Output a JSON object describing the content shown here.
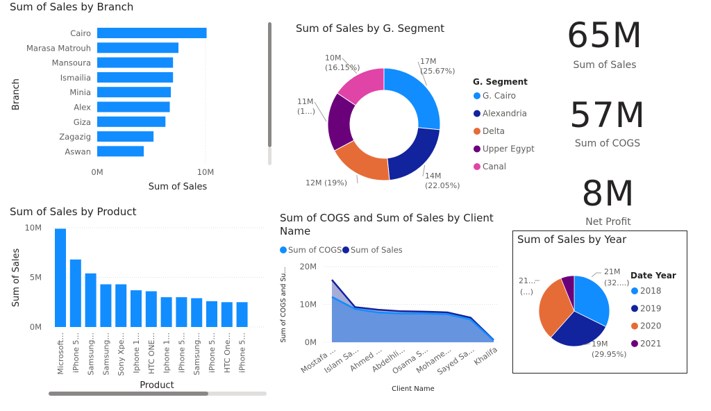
{
  "branch_chart": {
    "title": "Sum of Sales by Branch",
    "chart_data": {
      "type": "bar",
      "orientation": "horizontal",
      "categories": [
        "Cairo",
        "Marasa Matrouh",
        "Mansoura",
        "Ismailia",
        "Minia",
        "Alex",
        "Giza",
        "Zagazig",
        "Aswan"
      ],
      "values": [
        10.1,
        7.5,
        7.0,
        7.0,
        6.8,
        6.7,
        6.3,
        5.2,
        4.3
      ],
      "xlabel": "Sum of Sales",
      "ylabel": "Branch",
      "xlim": [
        0,
        10
      ],
      "xticks": [
        "0M",
        "10M"
      ],
      "color": "#118DFF"
    }
  },
  "segment_chart": {
    "title": "Sum of Sales by G. Segment",
    "legend_title": "G. Segment",
    "chart_data": {
      "type": "pie",
      "donut": true,
      "categories": [
        "G. Cairo",
        "Alexandria",
        "Delta",
        "Upper Egypt",
        "Canal"
      ],
      "values": [
        17,
        14,
        12,
        11,
        10
      ],
      "percents": [
        25.67,
        22.05,
        19,
        17.14,
        16.15
      ],
      "colors": [
        "#118DFF",
        "#12239E",
        "#E66C37",
        "#6B007B",
        "#E044A7"
      ],
      "labels": [
        {
          "line1": "17M",
          "line2": "(25.67%)"
        },
        {
          "line1": "14M",
          "line2": "(22.05%)"
        },
        {
          "line1": "12M (19%)",
          "line2": ""
        },
        {
          "line1": "11M",
          "line2": "(1...)"
        },
        {
          "line1": "10M",
          "line2": "(16.15%)"
        }
      ],
      "legend": "right"
    }
  },
  "kpis": [
    {
      "value": "65M",
      "label": "Sum of Sales"
    },
    {
      "value": "57M",
      "label": "Sum of COGS"
    },
    {
      "value": "8M",
      "label": "Net Profit"
    }
  ],
  "product_chart": {
    "title": "Sum of Sales by Product",
    "chart_data": {
      "type": "bar",
      "categories": [
        "Microsoft...",
        "iPhone 5...",
        "Samsung...",
        "Samsung...",
        "Sony Xpe...",
        "Iphone 1...",
        "HTC ONE...",
        "Iphone 1...",
        "iPhone 5...",
        "Samsung...",
        "iPhone 5...",
        "HTC One...",
        "iPhone 5..."
      ],
      "values": [
        9.9,
        6.8,
        5.4,
        4.3,
        4.3,
        3.7,
        3.6,
        3.0,
        3.0,
        2.9,
        2.6,
        2.5,
        2.5
      ],
      "xlabel": "Product",
      "ylabel": "Sum of Sales",
      "ylim": [
        0,
        10
      ],
      "yticks": [
        "0M",
        "5M",
        "10M"
      ],
      "color": "#118DFF"
    }
  },
  "client_chart": {
    "title_line1": "Sum of COGS and Sum of Sales by Client",
    "title_line2": "Name",
    "chart_data": {
      "type": "area",
      "categories": [
        "Mostafa ...",
        "Islam Sa...",
        "Ahmed ...",
        "Abdelhli...",
        "Osama S...",
        "Mohame...",
        "Sayed Sa...",
        "Khalifa"
      ],
      "series": [
        {
          "name": "Sum of COGS",
          "values": [
            12.0,
            8.8,
            7.9,
            7.6,
            7.6,
            7.4,
            6.0,
            0.5
          ],
          "color": "#118DFF"
        },
        {
          "name": "Sum of Sales",
          "values": [
            16.5,
            9.3,
            8.6,
            8.2,
            8.1,
            7.9,
            6.5,
            0.6
          ],
          "color": "#12239E"
        }
      ],
      "xlabel": "Client Name",
      "ylabel": "Sum of COGS and Su...",
      "ylim": [
        0,
        20
      ],
      "yticks": [
        "0M",
        "10M",
        "20M"
      ],
      "legend": "top"
    }
  },
  "year_chart": {
    "title": "Sum of Sales by Year",
    "legend_title": "Date Year",
    "chart_data": {
      "type": "pie",
      "categories": [
        "2018",
        "2019",
        "2020",
        "2021"
      ],
      "values": [
        21,
        19,
        21,
        4
      ],
      "colors": [
        "#118DFF",
        "#12239E",
        "#E66C37",
        "#6B007B"
      ],
      "labels": [
        {
          "line1": "21M",
          "line2": "(32....)"
        },
        {
          "line1": "19M",
          "line2": "(29.95%)"
        },
        {
          "line1": "21...",
          "line2": "(...)"
        }
      ],
      "legend": "right"
    }
  }
}
